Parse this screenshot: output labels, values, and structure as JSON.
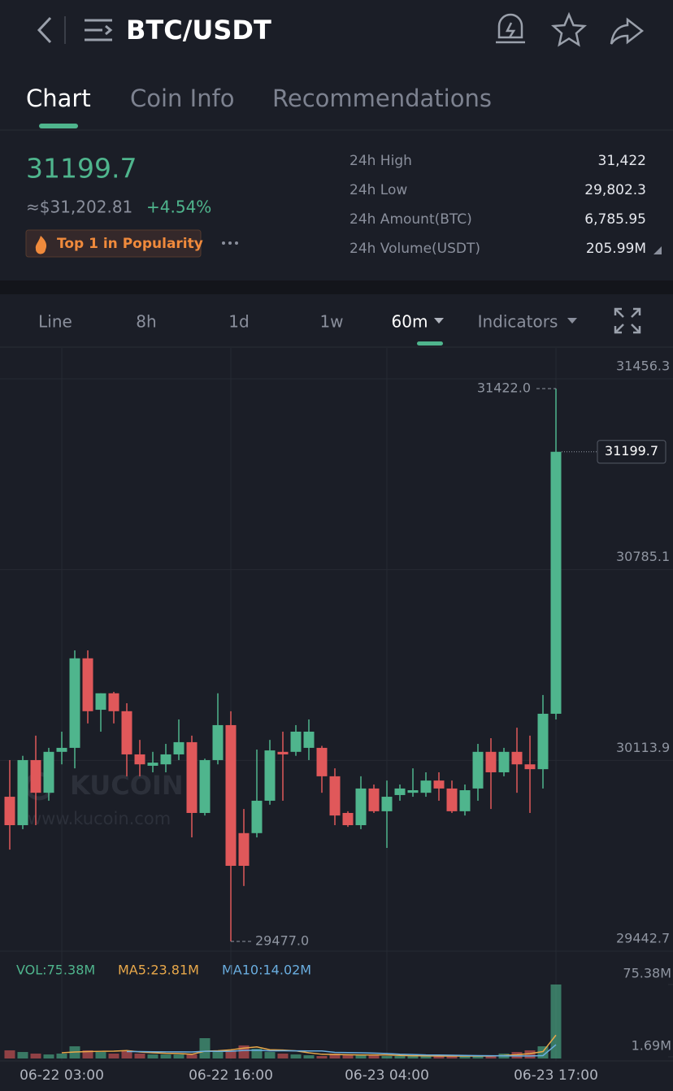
{
  "header": {
    "title": "BTC/USDT"
  },
  "tabs": [
    "Chart",
    "Coin Info",
    "Recommendations"
  ],
  "ticker": {
    "price": "31199.7",
    "fiat": "≈$31,202.81",
    "change": "+4.54%",
    "badge": "Top 1 in Popularity",
    "stats": [
      {
        "label": "24h High",
        "value": "31,422"
      },
      {
        "label": "24h Low",
        "value": "29,802.3"
      },
      {
        "label": "24h Amount(BTC)",
        "value": "6,785.95"
      },
      {
        "label": "24h Volume(USDT)",
        "value": "205.99M"
      }
    ]
  },
  "toolbar": [
    "Line",
    "8h",
    "1d",
    "1w",
    "60m",
    "Indicators"
  ],
  "chart_data": {
    "type": "candlestick",
    "watermark": {
      "brand": "KUCOIN",
      "url": "www.kucoin.com"
    },
    "categories": [
      null,
      null,
      null,
      null,
      "06-22 03:00",
      null,
      null,
      null,
      null,
      null,
      null,
      null,
      null,
      null,
      null,
      null,
      null,
      "06-22 16:00",
      null,
      null,
      null,
      null,
      null,
      null,
      null,
      null,
      null,
      null,
      null,
      "06-23 04:00",
      null,
      null,
      null,
      null,
      null,
      null,
      null,
      null,
      null,
      null,
      null,
      null,
      "06-23 17:00"
    ],
    "open": [
      29986,
      29886,
      30115,
      30000,
      30144,
      30158,
      30473,
      30292,
      30350,
      30287,
      30135,
      30095,
      30100,
      30135,
      30178,
      29929,
      30115,
      30238,
      29858,
      29858,
      29972,
      30144,
      30144,
      30158,
      30158,
      30058,
      29929,
      29886,
      30015,
      29935,
      29992,
      30000,
      30000,
      30043,
      30015,
      29935,
      30015,
      30144,
      30072,
      30144,
      30100,
      30083,
      30278
    ],
    "high": [
      30115,
      30130,
      30201,
      30158,
      30215,
      30501,
      30501,
      30350,
      30355,
      30315,
      30186,
      30144,
      30172,
      30258,
      30201,
      30120,
      30350,
      30287,
      29943,
      30152,
      30186,
      30215,
      30238,
      30258,
      30165,
      30086,
      29935,
      30058,
      30029,
      30043,
      30029,
      30086,
      30072,
      30072,
      30043,
      30029,
      30172,
      30192,
      30158,
      30229,
      30201,
      30344,
      31422
    ],
    "low": [
      29800,
      29872,
      29886,
      29972,
      30100,
      30086,
      30244,
      30215,
      30244,
      30058,
      30058,
      30072,
      30072,
      30115,
      29843,
      29920,
      30100,
      29477,
      29672,
      29843,
      29958,
      29972,
      30130,
      30115,
      30000,
      29886,
      29880,
      29872,
      29929,
      29806,
      29972,
      29986,
      29986,
      29972,
      29929,
      29920,
      29972,
      29943,
      30058,
      30000,
      29929,
      30015,
      30258
    ],
    "close": [
      29886,
      30115,
      30000,
      30144,
      30158,
      30473,
      30287,
      30350,
      30287,
      30135,
      30100,
      30106,
      30135,
      30178,
      29929,
      30115,
      30238,
      29743,
      29743,
      29972,
      30149,
      30135,
      30215,
      30215,
      30058,
      29920,
      29886,
      30015,
      29935,
      29986,
      30015,
      30009,
      30043,
      30015,
      29935,
      30009,
      30144,
      30072,
      30144,
      30100,
      30083,
      30278,
      31199.7
    ],
    "up_color": "#4fb58d",
    "down_color": "#e0585a",
    "ylim": [
      29442.7,
      31565
    ],
    "yticks": [
      29442.7,
      30113.9,
      30785.1,
      31456.3
    ],
    "grid": true,
    "high_marker": {
      "value": 31422,
      "label": "31422.0"
    },
    "low_marker": {
      "value": 29477,
      "label": "29477.0"
    },
    "last_price": 31199.7,
    "volume": {
      "values": [
        8.3,
        6.6,
        5.0,
        4.1,
        5.0,
        12.4,
        8.3,
        6.6,
        5.0,
        8.3,
        5.0,
        4.1,
        4.1,
        4.1,
        4.1,
        20.7,
        6.6,
        8.3,
        13.3,
        9.9,
        6.6,
        5.0,
        4.1,
        3.3,
        2.5,
        5.0,
        4.1,
        3.3,
        3.3,
        2.5,
        2.5,
        2.5,
        2.5,
        2.5,
        2.5,
        2.5,
        2.5,
        2.5,
        5.0,
        6.6,
        8.3,
        12.4,
        75.38
      ],
      "ylim": [
        0,
        75.38
      ],
      "yticks": [
        {
          "value": 1.69,
          "label": "1.69M"
        },
        {
          "value": 75.38,
          "label": "75.38M"
        }
      ],
      "series": [
        {
          "name": "VOL:75.38M",
          "color": "#4fb58d"
        },
        {
          "name": "MA5:23.81M",
          "color": "#e8a84a",
          "values": [
            null,
            null,
            null,
            null,
            5.8,
            6.6,
            7.0,
            7.3,
            7.5,
            8.1,
            6.6,
            5.8,
            5.3,
            5.1,
            4.3,
            7.4,
            7.9,
            8.8,
            10.6,
            11.8,
            8.9,
            8.6,
            7.8,
            5.8,
            4.3,
            4.0,
            3.8,
            3.6,
            3.6,
            3.6,
            3.1,
            2.8,
            2.7,
            2.5,
            2.5,
            2.5,
            2.5,
            2.5,
            3.0,
            3.8,
            5.0,
            7.0,
            23.81
          ]
        },
        {
          "name": "MA10:14.02M",
          "color": "#6aaee0",
          "values": [
            null,
            null,
            null,
            null,
            null,
            null,
            null,
            null,
            null,
            7.0,
            7.0,
            6.8,
            6.7,
            6.7,
            6.6,
            7.4,
            7.2,
            7.4,
            8.2,
            8.4,
            7.8,
            7.9,
            7.8,
            7.7,
            7.7,
            6.2,
            6.0,
            5.8,
            5.5,
            5.1,
            4.4,
            4.0,
            3.6,
            3.5,
            3.3,
            3.1,
            2.9,
            2.8,
            2.7,
            2.6,
            2.6,
            2.9,
            14.02
          ]
        }
      ]
    }
  }
}
